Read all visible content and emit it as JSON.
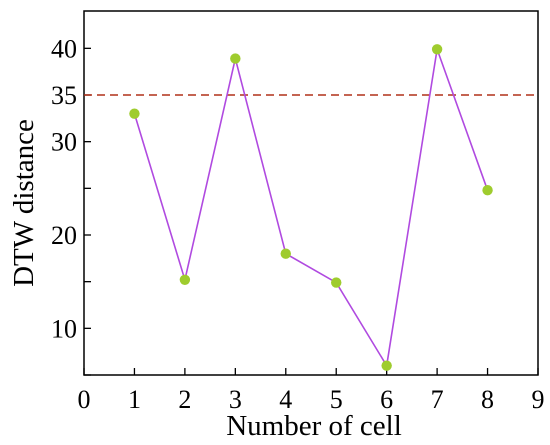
{
  "chart_data": {
    "type": "line",
    "xlabel": "Number of cell",
    "ylabel": "DTW distance",
    "xlim": [
      0,
      9
    ],
    "ylim": [
      5,
      44
    ],
    "x_ticks": [
      0,
      1,
      2,
      3,
      4,
      5,
      6,
      7,
      8,
      9
    ],
    "y_ticks_major": [
      10,
      20,
      30,
      40
    ],
    "y_tick_labels": [
      {
        "value": 10,
        "label": "10"
      },
      {
        "value": 20,
        "label": "20"
      },
      {
        "value": 30,
        "label": "30"
      },
      {
        "value": 35,
        "label": "35"
      },
      {
        "value": 40,
        "label": "40"
      }
    ],
    "y_ticks_minor": [
      5,
      15,
      25,
      35
    ],
    "series": [
      {
        "x": [
          1,
          2,
          3,
          4,
          5,
          6,
          7,
          8
        ],
        "values": [
          33.0,
          15.2,
          38.9,
          18.0,
          14.9,
          6.0,
          39.9,
          24.8
        ],
        "line_color": "#b04ae0",
        "marker_color": "#9fcc2e"
      }
    ],
    "threshold": {
      "value": 35,
      "color": "#b03018",
      "style": "dashed"
    },
    "grid": false,
    "legend": "none"
  }
}
